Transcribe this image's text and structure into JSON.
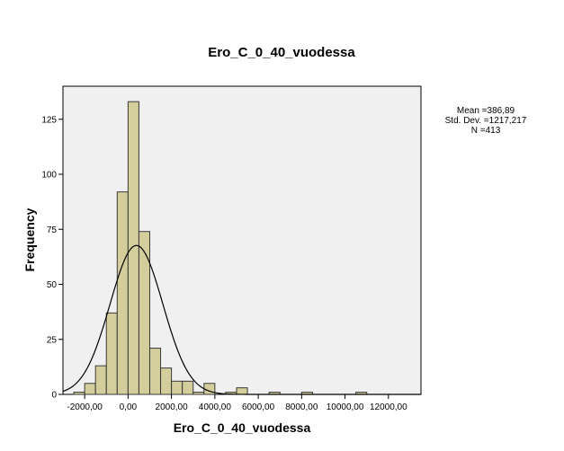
{
  "chart_data": {
    "type": "bar",
    "subtype": "histogram-with-normal-curve",
    "title": "Ero_C_0_40_vuodessa",
    "xlabel": "Ero_C_0_40_vuodessa",
    "ylabel": "Frequency",
    "xlim": [
      -3000,
      13500
    ],
    "ylim": [
      0,
      140
    ],
    "bin_width": 500,
    "xticks": [
      -2000,
      0,
      2000,
      4000,
      6000,
      8000,
      10000,
      12000
    ],
    "xtick_labels": [
      "-2000,00",
      "0,00",
      "2000,00",
      "4000,00",
      "6000,00",
      "8000,00",
      "10000,00",
      "12000,00"
    ],
    "yticks": [
      0,
      25,
      50,
      75,
      100,
      125
    ],
    "ytick_labels": [
      "0",
      "25",
      "50",
      "75",
      "100",
      "125"
    ],
    "bins": [
      {
        "start": -2500,
        "end": -2000,
        "count": 1
      },
      {
        "start": -2000,
        "end": -1500,
        "count": 5
      },
      {
        "start": -1500,
        "end": -1000,
        "count": 13
      },
      {
        "start": -1000,
        "end": -500,
        "count": 37
      },
      {
        "start": -500,
        "end": 0,
        "count": 92
      },
      {
        "start": 0,
        "end": 500,
        "count": 133
      },
      {
        "start": 500,
        "end": 1000,
        "count": 74
      },
      {
        "start": 1000,
        "end": 1500,
        "count": 21
      },
      {
        "start": 1500,
        "end": 2000,
        "count": 12
      },
      {
        "start": 2000,
        "end": 2500,
        "count": 6
      },
      {
        "start": 2500,
        "end": 3000,
        "count": 6
      },
      {
        "start": 3000,
        "end": 3500,
        "count": 1
      },
      {
        "start": 3500,
        "end": 4000,
        "count": 5
      },
      {
        "start": 4500,
        "end": 5000,
        "count": 1
      },
      {
        "start": 5000,
        "end": 5500,
        "count": 3
      },
      {
        "start": 6500,
        "end": 7000,
        "count": 1
      },
      {
        "start": 8000,
        "end": 8500,
        "count": 1
      },
      {
        "start": 10500,
        "end": 11000,
        "count": 1
      }
    ],
    "normal_curve": {
      "mean": 386.89,
      "std_dev": 1217.217,
      "n": 413
    },
    "stats": {
      "mean_label": "Mean =386,89",
      "std_label": "Std. Dev. =1217,217",
      "n_label": "N =413"
    },
    "grid": false,
    "legend": "none",
    "colors": {
      "bar_fill": "#d3ce9b",
      "bar_stroke": "#3a3a3a",
      "plot_background": "#f0f0f0",
      "curve": "#000000"
    }
  }
}
